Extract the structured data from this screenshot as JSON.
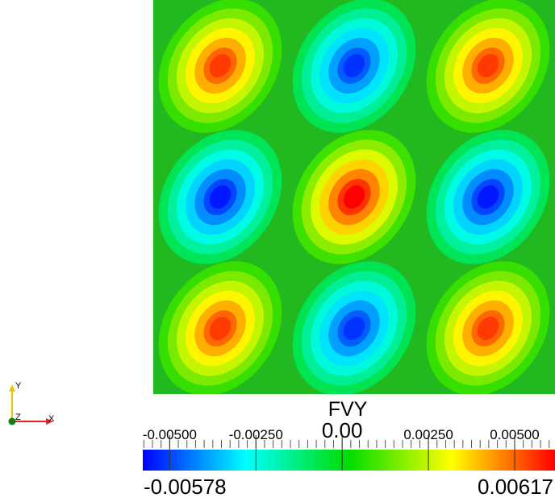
{
  "chart_data": {
    "type": "heatmap",
    "field": "FVY",
    "colormap": "rainbow (blue-cyan-green-yellow-red)",
    "range": [
      -0.00578,
      0.00617
    ],
    "range_labels": {
      "min": "-0.00578",
      "max": "0.00617"
    },
    "colorbar_ticks": [
      {
        "value": -0.005,
        "label": "-0.00500"
      },
      {
        "value": -0.0025,
        "label": "-0.00250"
      },
      {
        "value": 0.0,
        "label": "0.00"
      },
      {
        "value": 0.0025,
        "label": "0.00250"
      },
      {
        "value": 0.005,
        "label": "0.00500"
      }
    ],
    "grid": {
      "rows": 3,
      "cols": 3,
      "peaks": [
        [
          0.0055,
          -0.0052,
          0.0055
        ],
        [
          -0.0055,
          0.00617,
          -0.0055
        ],
        [
          0.0055,
          -0.0052,
          0.0055
        ]
      ]
    },
    "colors": {
      "low": "#0000ff",
      "mid_low": "#00ffff",
      "mid": "#00c800",
      "mid_high": "#ffff00",
      "high": "#ff0000"
    }
  },
  "axes_triad": {
    "x": "X",
    "y": "Y",
    "z": "Z"
  }
}
